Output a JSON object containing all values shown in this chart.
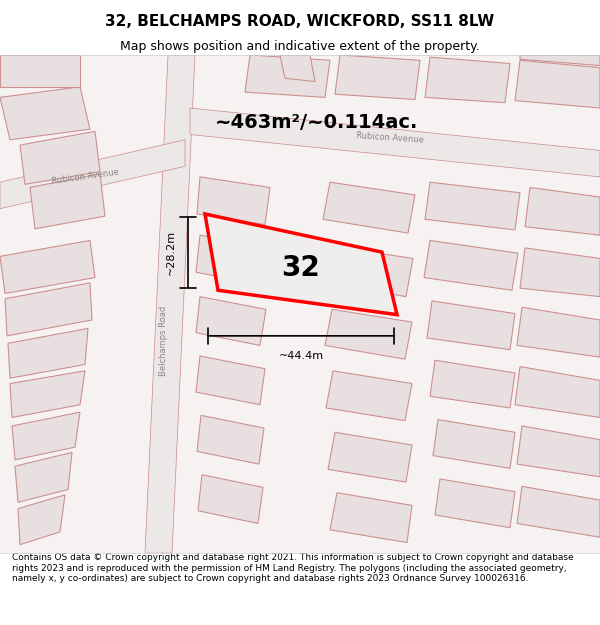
{
  "title": "32, BELCHAMPS ROAD, WICKFORD, SS11 8LW",
  "subtitle": "Map shows position and indicative extent of the property.",
  "footer": "Contains OS data © Crown copyright and database right 2021. This information is subject to Crown copyright and database rights 2023 and is reproduced with the permission of HM Land Registry. The polygons (including the associated geometry, namely x, y co-ordinates) are subject to Crown copyright and database rights 2023 Ordnance Survey 100026316.",
  "area_text": "~463m²/~0.114ac.",
  "number_label": "32",
  "width_label": "~44.4m",
  "height_label": "~28.2m",
  "bg_color": "#ffffff",
  "map_bg": "#f5f0f0",
  "road_color": "#e8b8b8",
  "building_fill": "#e8e0e0",
  "building_edge": "#cc9090",
  "highlight_color": "#ff0000",
  "road_line_color": "#cc8888",
  "title_fontsize": 11,
  "subtitle_fontsize": 9,
  "footer_fontsize": 6.5
}
